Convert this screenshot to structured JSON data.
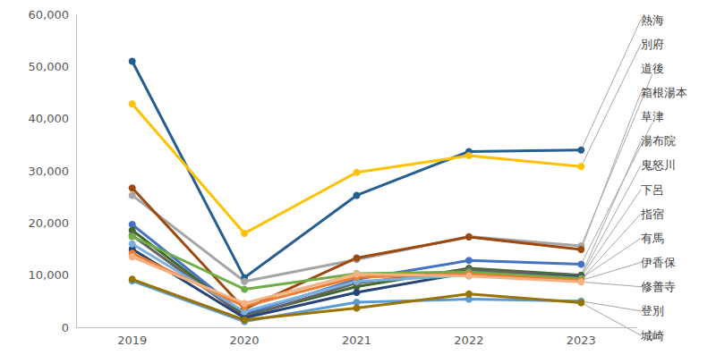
{
  "chart_data": {
    "type": "line",
    "categories": [
      "2019",
      "2020",
      "2021",
      "2022",
      "2023"
    ],
    "series": [
      {
        "name": "熱海",
        "color": "#255e91",
        "values": [
          51000,
          9500,
          25300,
          33700,
          34000
        ]
      },
      {
        "name": "別府",
        "color": "#ffc000",
        "values": [
          42800,
          18000,
          29700,
          32900,
          30800
        ]
      },
      {
        "name": "道後",
        "color": "#a5a5a5",
        "values": [
          25300,
          8800,
          13000,
          17400,
          15600
        ]
      },
      {
        "name": "箱根湯本",
        "color": "#9e480e",
        "values": [
          26700,
          3500,
          13300,
          17300,
          14900
        ]
      },
      {
        "name": "草津",
        "color": "#4472c4",
        "values": [
          19700,
          2500,
          9200,
          12800,
          12100
        ]
      },
      {
        "name": "湯布院",
        "color": "#43682b",
        "values": [
          18600,
          2200,
          7800,
          11300,
          10000
        ]
      },
      {
        "name": "鬼怒川",
        "color": "#636363",
        "values": [
          17600,
          2000,
          8500,
          11000,
          9800
        ]
      },
      {
        "name": "下呂",
        "color": "#264478",
        "values": [
          15000,
          1800,
          6700,
          10500,
          9600
        ]
      },
      {
        "name": "指宿",
        "color": "#7cafdd",
        "values": [
          16000,
          3000,
          8800,
          10000,
          9200
        ]
      },
      {
        "name": "有馬",
        "color": "#70ad47",
        "values": [
          17400,
          7300,
          10300,
          10600,
          9400
        ]
      },
      {
        "name": "伊香保",
        "color": "#ed7d31",
        "values": [
          14200,
          4000,
          9600,
          10200,
          9000
        ]
      },
      {
        "name": "修善寺",
        "color": "#f4b183",
        "values": [
          13500,
          4600,
          10200,
          9800,
          8700
        ]
      },
      {
        "name": "登別",
        "color": "#5b9bd5",
        "values": [
          8900,
          1100,
          4800,
          5400,
          5000
        ]
      },
      {
        "name": "城崎",
        "color": "#997300",
        "values": [
          9200,
          1400,
          3700,
          6400,
          4700
        ]
      }
    ],
    "ylim": [
      0,
      60000
    ],
    "yticks": [
      0,
      {
        "value": 10000,
        "label": "10,000"
      },
      {
        "value": 20000,
        "label": "20,000"
      },
      {
        "value": 30000,
        "label": "30,000"
      },
      {
        "value": 40000,
        "label": "40,000"
      },
      {
        "value": 50000,
        "label": "50,000"
      },
      {
        "value": 60000,
        "label": "60,000"
      }
    ],
    "grid": false,
    "marker": "circle"
  }
}
